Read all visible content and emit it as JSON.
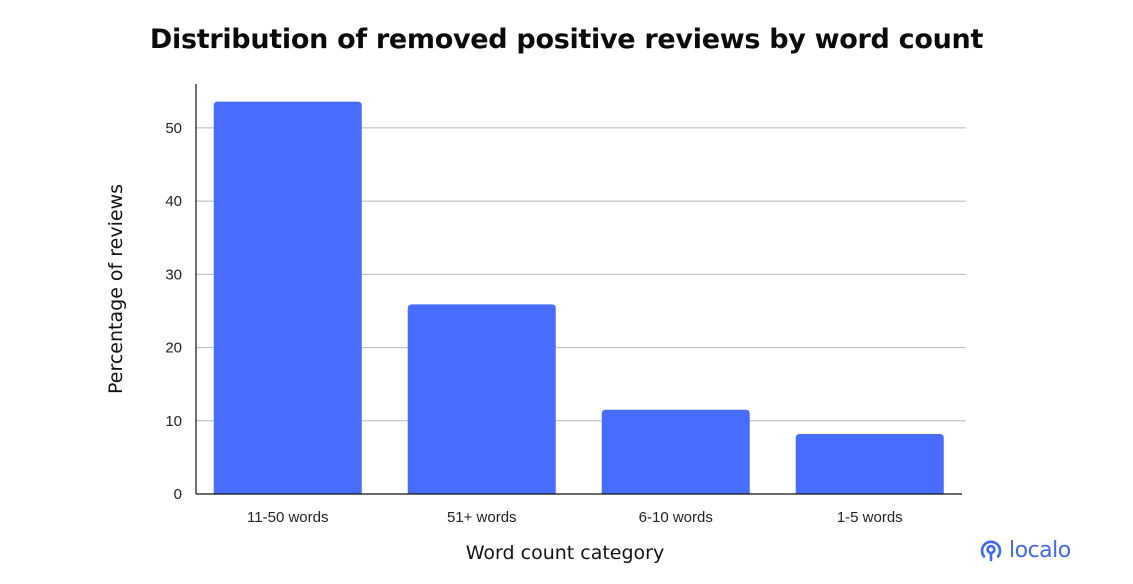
{
  "chart_data": {
    "type": "bar",
    "title": "Distribution of removed positive reviews by word count",
    "xlabel": "Word count category",
    "ylabel": "Percentage of reviews",
    "categories": [
      "11-50 words",
      "51+ words",
      "6-10 words",
      "1-5 words"
    ],
    "values": [
      53.6,
      25.9,
      11.5,
      8.2
    ],
    "ylim": [
      0,
      56
    ],
    "yticks": [
      0,
      10,
      20,
      30,
      40,
      50
    ],
    "grid": true,
    "bar_color": "#486cfc"
  },
  "brand": {
    "name": "localo",
    "color": "#4169e8",
    "icon": "location-pin-icon"
  }
}
